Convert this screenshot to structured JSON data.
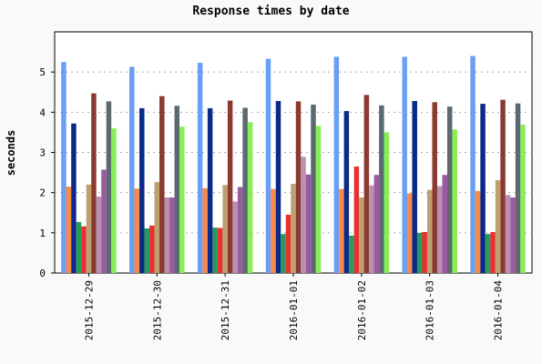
{
  "chart_data": {
    "type": "bar",
    "title": "Response times by date",
    "xlabel": "",
    "ylabel": "seconds",
    "ylim": [
      0,
      6
    ],
    "yticks": [
      0,
      1,
      2,
      3,
      4,
      5
    ],
    "grid": "horizontal dotted",
    "categories": [
      "2015-12-29",
      "2015-12-30",
      "2015-12-31",
      "2016-01-01",
      "2016-01-02",
      "2016-01-03",
      "2016-01-04"
    ],
    "series": [
      {
        "color": "#6b9ff5",
        "values": [
          5.25,
          5.13,
          5.23,
          5.33,
          5.38,
          5.38,
          5.4
        ]
      },
      {
        "color": "#f58a4a",
        "values": [
          2.15,
          2.1,
          2.11,
          2.09,
          2.09,
          1.98,
          2.04
        ]
      },
      {
        "color": "#0a2a8a",
        "values": [
          3.72,
          4.1,
          4.1,
          4.28,
          4.03,
          4.28,
          4.21
        ]
      },
      {
        "color": "#2a9a5a",
        "values": [
          1.27,
          1.11,
          1.13,
          0.97,
          0.93,
          1.0,
          0.97
        ]
      },
      {
        "color": "#e83030",
        "values": [
          1.16,
          1.18,
          1.12,
          1.45,
          2.65,
          1.02,
          1.02
        ]
      },
      {
        "color": "#bda070",
        "values": [
          2.2,
          2.26,
          2.19,
          2.22,
          1.88,
          2.07,
          2.31
        ]
      },
      {
        "color": "#8a3a30",
        "values": [
          4.47,
          4.4,
          4.29,
          4.27,
          4.43,
          4.25,
          4.31
        ]
      },
      {
        "color": "#b890b0",
        "values": [
          1.9,
          1.88,
          1.78,
          2.89,
          2.18,
          2.16,
          1.94
        ]
      },
      {
        "color": "#9a5aa0",
        "values": [
          2.57,
          1.88,
          2.14,
          2.45,
          2.44,
          2.44,
          1.88
        ]
      },
      {
        "color": "#5a6a70",
        "values": [
          4.27,
          4.16,
          4.11,
          4.19,
          4.17,
          4.14,
          4.22
        ]
      },
      {
        "color": "#88ee55",
        "values": [
          3.6,
          3.64,
          3.75,
          3.66,
          3.5,
          3.57,
          3.69
        ]
      }
    ]
  }
}
